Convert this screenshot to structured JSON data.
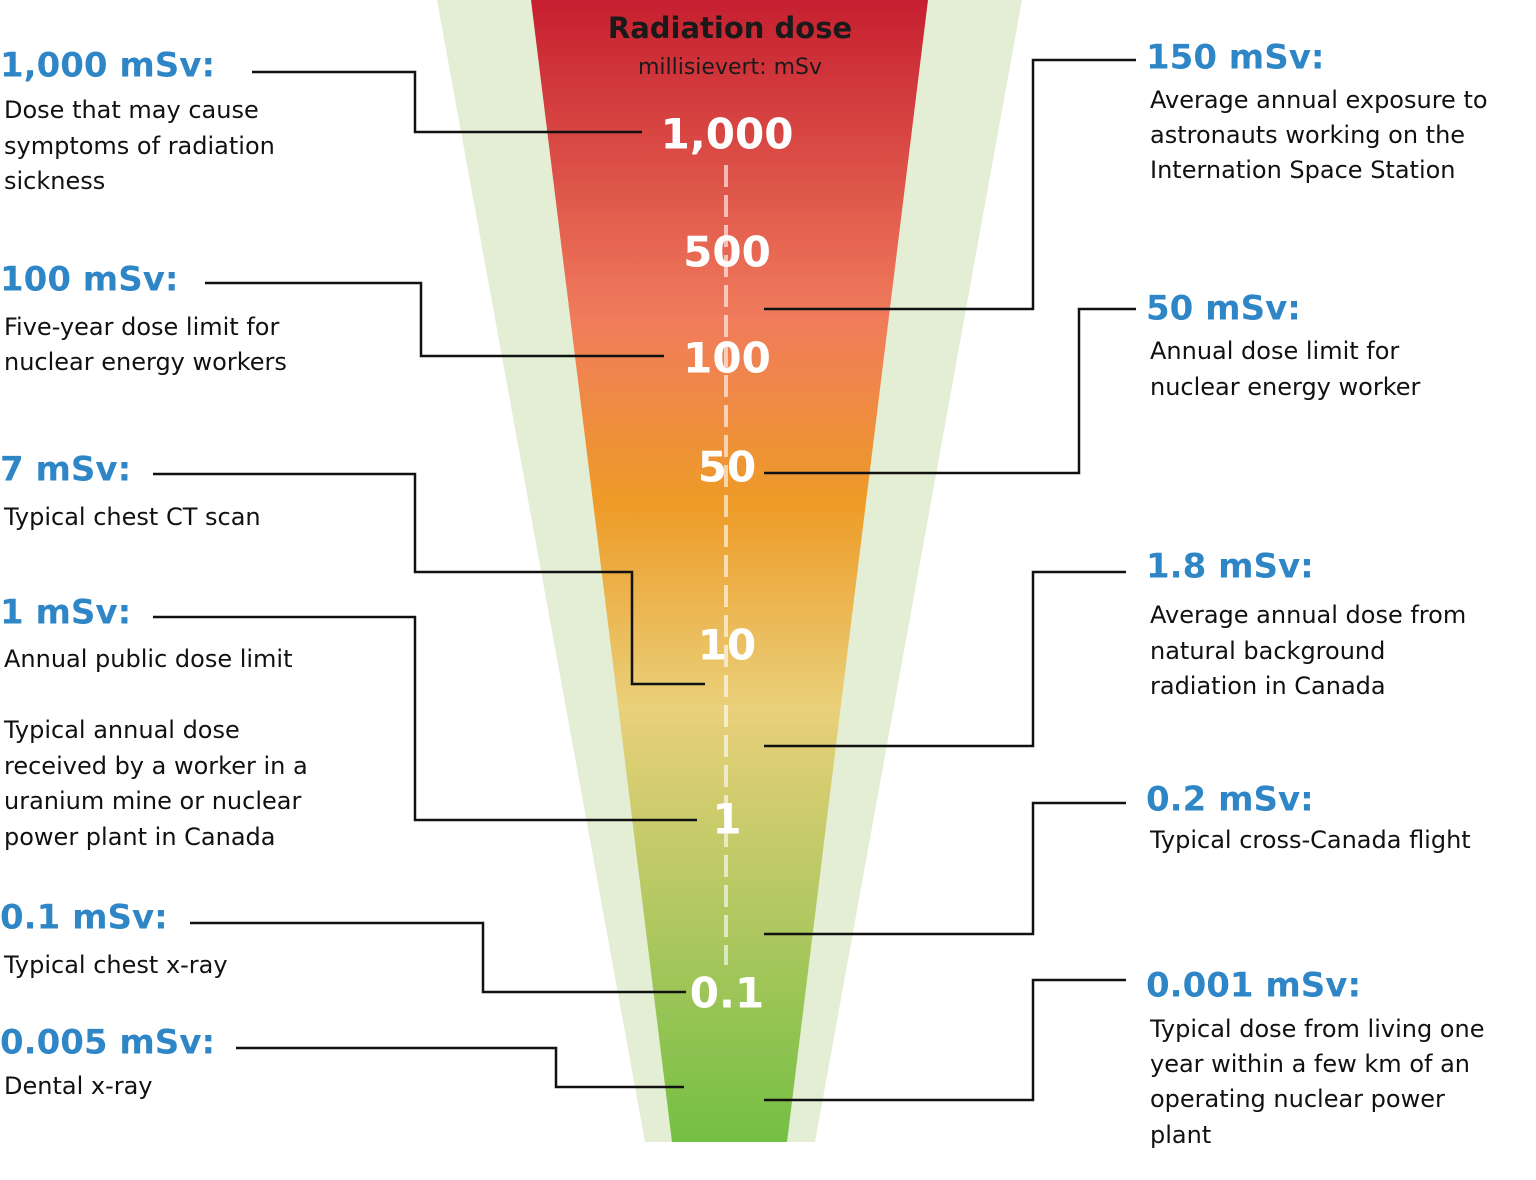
{
  "header": {
    "title": "Radiation dose",
    "subtitle": "millisievert: mSv"
  },
  "scale": [
    "1,000",
    "500",
    "100",
    "50",
    "10",
    "1",
    "0.1"
  ],
  "left": [
    {
      "heading": "1,000 mSv:",
      "lines": [
        "Dose that may cause",
        "symptoms of radiation",
        "sickness"
      ]
    },
    {
      "heading": "100 mSv:",
      "lines": [
        "Five-year dose limit for",
        "nuclear energy workers"
      ]
    },
    {
      "heading": "7 mSv:",
      "lines": [
        "Typical chest CT scan"
      ]
    },
    {
      "heading": "1 mSv:",
      "lines": [
        "Annual public dose limit"
      ]
    },
    {
      "lines": [
        "Typical annual dose",
        "received by a worker in a",
        "uranium mine or nuclear",
        "power plant in Canada"
      ]
    },
    {
      "heading": "0.1 mSv:",
      "lines": [
        "Typical chest x-ray"
      ]
    },
    {
      "heading": "0.005 mSv:",
      "lines": [
        "Dental x-ray"
      ]
    }
  ],
  "right": [
    {
      "heading": "150 mSv:",
      "lines": [
        "Average annual exposure to",
        "astronauts working on the",
        "Internation Space Station"
      ]
    },
    {
      "heading": "50 mSv:",
      "lines": [
        "Annual dose limit for",
        "nuclear energy worker"
      ]
    },
    {
      "heading": "1.8 mSv:",
      "lines": [
        "Average annual dose from",
        "natural background",
        "radiation in Canada"
      ]
    },
    {
      "heading": "0.2 mSv:",
      "lines": [
        "Typical cross-Canada flight"
      ]
    },
    {
      "heading": "0.001 mSv:",
      "lines": [
        "Typical dose from living one",
        "year within a few km of an",
        "operating nuclear power",
        "plant"
      ]
    }
  ]
}
